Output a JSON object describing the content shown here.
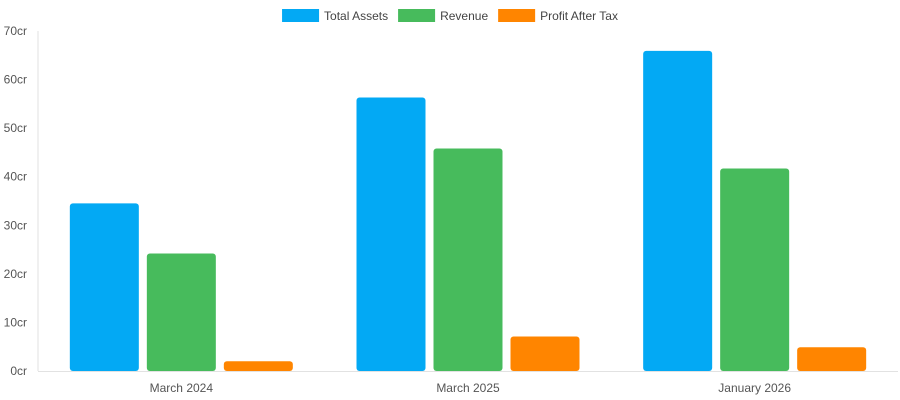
{
  "chart_data": {
    "type": "bar",
    "title": "",
    "xlabel": "",
    "ylabel": "",
    "categories": [
      "March 2024",
      "March 2025",
      "January 2026"
    ],
    "series": [
      {
        "name": "Total Assets",
        "values": [
          34.5,
          56.3,
          65.9
        ],
        "color": "#03a9f4"
      },
      {
        "name": "Revenue",
        "values": [
          24.2,
          45.8,
          41.7
        ],
        "color": "#47bb5c"
      },
      {
        "name": "Profit After Tax",
        "values": [
          2.0,
          7.1,
          4.9
        ],
        "color": "#ff8500"
      }
    ],
    "ylim": [
      0,
      70
    ],
    "yticks": [
      0,
      10,
      20,
      30,
      40,
      50,
      60,
      70
    ],
    "ytick_labels": [
      "0cr",
      "10cr",
      "20cr",
      "30cr",
      "40cr",
      "50cr",
      "60cr",
      "70cr"
    ],
    "grid": false,
    "legend_position": "top-center"
  }
}
